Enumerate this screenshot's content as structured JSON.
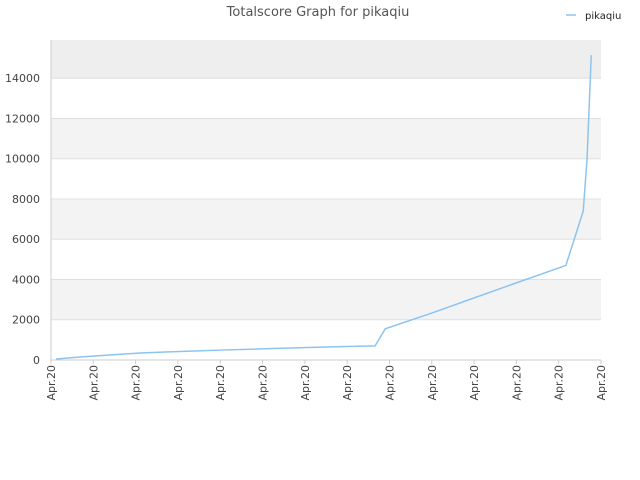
{
  "chart_data": {
    "type": "line",
    "title": "Totalscore Graph for pikaqiu",
    "x": [
      0.12,
      0.69,
      1.39,
      2.1,
      2.7,
      3.4,
      4.11,
      4.94,
      5.77,
      6.6,
      7.66,
      7.9,
      8.96,
      10.02,
      11.09,
      12.17,
      12.58,
      12.67,
      12.77
    ],
    "series": [
      {
        "name": "pikaqiu",
        "color": "#8cc4f0",
        "values": [
          50,
          150,
          250,
          350,
          400,
          450,
          500,
          550,
          600,
          650,
          700,
          1550,
          2300,
          3100,
          3900,
          4700,
          7400,
          10000,
          15150
        ]
      }
    ],
    "xlim": [
      0,
      13
    ],
    "xticks": [
      {
        "value": 0,
        "label": "Apr.20"
      },
      {
        "value": 1,
        "label": "Apr.20"
      },
      {
        "value": 2,
        "label": "Apr.20"
      },
      {
        "value": 3,
        "label": "Apr.20"
      },
      {
        "value": 4,
        "label": "Apr.20"
      },
      {
        "value": 5,
        "label": "Apr.20"
      },
      {
        "value": 6,
        "label": "Apr.20"
      },
      {
        "value": 7,
        "label": "Apr.20"
      },
      {
        "value": 8,
        "label": "Apr.20"
      },
      {
        "value": 9,
        "label": "Apr.20"
      },
      {
        "value": 10,
        "label": "Apr.20"
      },
      {
        "value": 11,
        "label": "Apr.20"
      },
      {
        "value": 12,
        "label": "Apr.20"
      },
      {
        "value": 13,
        "label": "Apr.20"
      }
    ],
    "ylim": [
      0,
      15900
    ],
    "yticks": [
      0,
      2000,
      4000,
      6000,
      8000,
      10000,
      12000,
      14000
    ],
    "grid": true,
    "legend": "top-right"
  }
}
